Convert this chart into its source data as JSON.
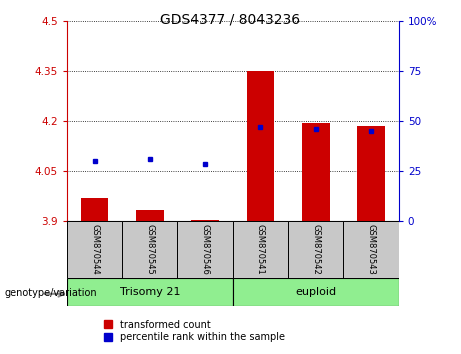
{
  "title": "GDS4377 / 8043236",
  "samples": [
    "GSM870544",
    "GSM870545",
    "GSM870546",
    "GSM870541",
    "GSM870542",
    "GSM870543"
  ],
  "groups": [
    "Trisomy 21",
    "Trisomy 21",
    "Trisomy 21",
    "euploid",
    "euploid",
    "euploid"
  ],
  "transformed_counts": [
    3.97,
    3.935,
    3.905,
    4.352,
    4.195,
    4.185
  ],
  "percentile_ranks_left": [
    4.082,
    4.087,
    4.073,
    4.182,
    4.178,
    4.172
  ],
  "y_min": 3.9,
  "y_max": 4.5,
  "y_ticks": [
    3.9,
    4.05,
    4.2,
    4.35,
    4.5
  ],
  "y_tick_labels": [
    "3.9",
    "4.05",
    "4.2",
    "4.35",
    "4.5"
  ],
  "y2_ticks": [
    0,
    25,
    50,
    75,
    100
  ],
  "y2_tick_labels": [
    "0",
    "25",
    "50",
    "75",
    "100%"
  ],
  "bar_color": "#CC0000",
  "dot_color": "#0000CC",
  "bar_width": 0.5,
  "left_axis_color": "#CC0000",
  "right_axis_color": "#0000CC",
  "legend_red_label": "transformed count",
  "legend_blue_label": "percentile rank within the sample",
  "genotype_label": "genotype/variation",
  "background_color": "#FFFFFF",
  "sample_bg_color": "#C8C8C8",
  "group_color": "#90EE90",
  "group_spans": [
    [
      0,
      2,
      "Trisomy 21"
    ],
    [
      3,
      5,
      "euploid"
    ]
  ]
}
